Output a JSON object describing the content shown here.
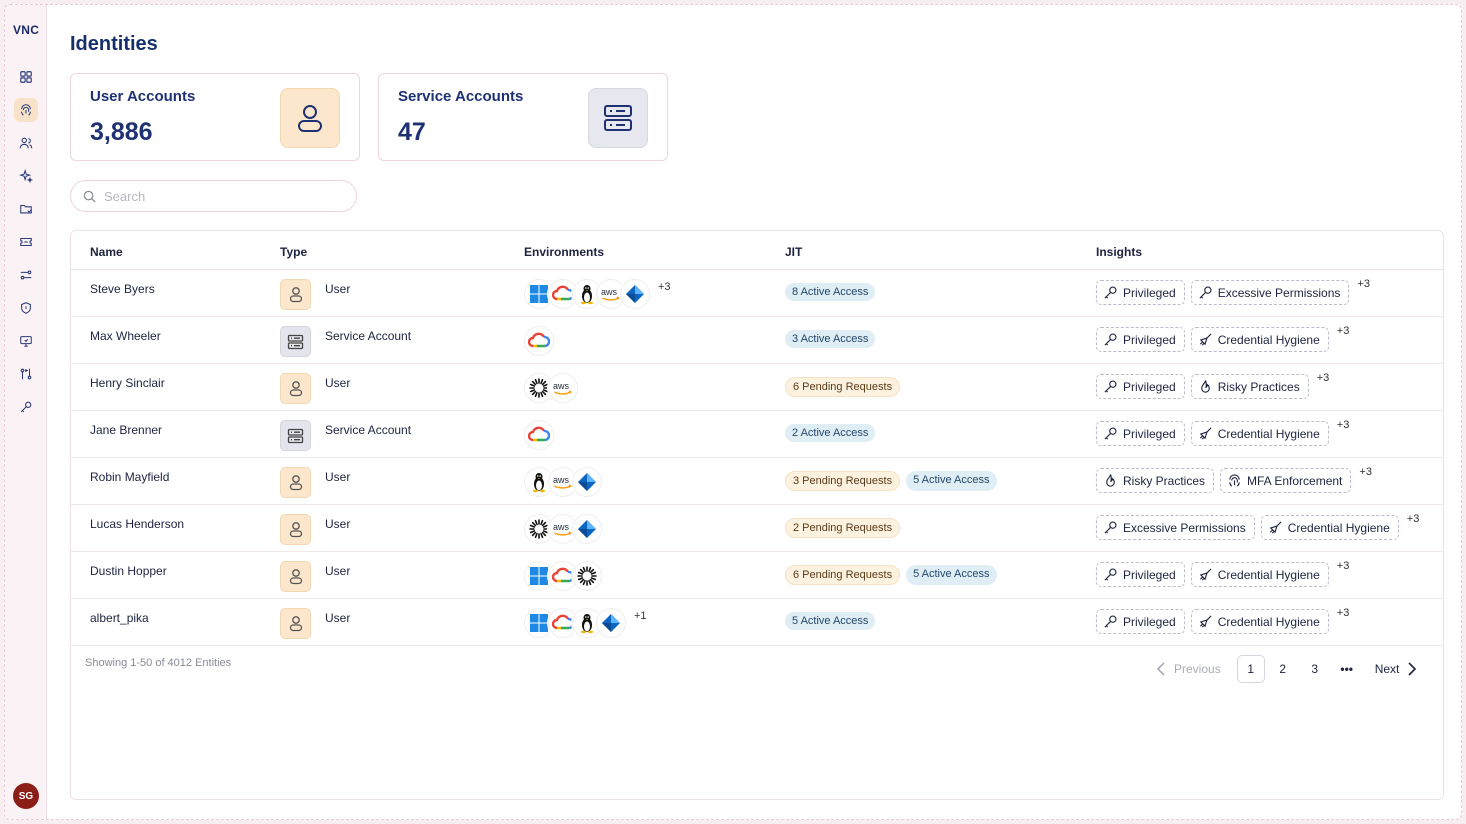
{
  "brand": "VNC",
  "user_initials": "SG",
  "page_title": "Identities",
  "cards": {
    "user_accounts": {
      "label": "User Accounts",
      "value": "3,886"
    },
    "service_accounts": {
      "label": "Service Accounts",
      "value": "47"
    }
  },
  "search": {
    "placeholder": "Search",
    "value": ""
  },
  "table": {
    "headers": {
      "name": "Name",
      "type": "Type",
      "environments": "Environments",
      "jit": "JIT",
      "insights": "Insights"
    },
    "rows": [
      {
        "name": "Steve Byers",
        "type": "User",
        "type_icon": "user-icon",
        "envs": [
          "windows",
          "gcp",
          "linux",
          "aws",
          "azure"
        ],
        "env_more": "+3",
        "jit": [
          {
            "label": "8 Active Access",
            "kind": "active"
          }
        ],
        "insights": [
          {
            "label": "Privileged",
            "icon": "key-icon"
          },
          {
            "label": "Excessive Permissions",
            "icon": "key-icon"
          }
        ],
        "insights_more": "+3"
      },
      {
        "name": "Max Wheeler",
        "type": "Service Account",
        "type_icon": "server-icon",
        "envs": [
          "gcp"
        ],
        "env_more": "",
        "jit": [
          {
            "label": "3 Active Access",
            "kind": "active"
          }
        ],
        "insights": [
          {
            "label": "Privileged",
            "icon": "key-icon"
          },
          {
            "label": "Credential Hygiene",
            "icon": "broom-icon"
          }
        ],
        "insights_more": "+3"
      },
      {
        "name": "Henry Sinclair",
        "type": "User",
        "type_icon": "user-icon",
        "envs": [
          "openai",
          "aws"
        ],
        "env_more": "",
        "jit": [
          {
            "label": "6 Pending Requests",
            "kind": "pending"
          }
        ],
        "insights": [
          {
            "label": "Privileged",
            "icon": "key-icon"
          },
          {
            "label": "Risky Practices",
            "icon": "flame-icon"
          }
        ],
        "insights_more": "+3"
      },
      {
        "name": "Jane Brenner",
        "type": "Service Account",
        "type_icon": "server-icon",
        "envs": [
          "gcp"
        ],
        "env_more": "",
        "jit": [
          {
            "label": "2 Active Access",
            "kind": "active"
          }
        ],
        "insights": [
          {
            "label": "Privileged",
            "icon": "key-icon"
          },
          {
            "label": "Credential Hygiene",
            "icon": "broom-icon"
          }
        ],
        "insights_more": "+3"
      },
      {
        "name": "Robin Mayfield",
        "type": "User",
        "type_icon": "user-icon",
        "envs": [
          "linux",
          "aws",
          "azure"
        ],
        "env_more": "",
        "jit": [
          {
            "label": "3 Pending Requests",
            "kind": "pending"
          },
          {
            "label": "5 Active Access",
            "kind": "active"
          }
        ],
        "insights": [
          {
            "label": "Risky Practices",
            "icon": "flame-icon"
          },
          {
            "label": "MFA Enforcement",
            "icon": "fingerprint-icon"
          }
        ],
        "insights_more": "+3"
      },
      {
        "name": "Lucas Henderson",
        "type": "User",
        "type_icon": "user-icon",
        "envs": [
          "openai",
          "aws",
          "azure"
        ],
        "env_more": "",
        "jit": [
          {
            "label": "2 Pending Requests",
            "kind": "pending"
          }
        ],
        "insights": [
          {
            "label": "Excessive Permissions",
            "icon": "key-icon"
          },
          {
            "label": "Credential Hygiene",
            "icon": "broom-icon"
          }
        ],
        "insights_more": "+3"
      },
      {
        "name": "Dustin Hopper",
        "type": "User",
        "type_icon": "user-icon",
        "envs": [
          "windows",
          "gcp",
          "openai"
        ],
        "env_more": "",
        "jit": [
          {
            "label": "6 Pending Requests",
            "kind": "pending"
          },
          {
            "label": "5 Active Access",
            "kind": "active"
          }
        ],
        "insights": [
          {
            "label": "Privileged",
            "icon": "key-icon"
          },
          {
            "label": "Credential Hygiene",
            "icon": "broom-icon"
          }
        ],
        "insights_more": "+3"
      },
      {
        "name": "albert_pika",
        "type": "User",
        "type_icon": "user-icon",
        "envs": [
          "windows",
          "gcp",
          "linux",
          "azure"
        ],
        "env_more": "+1",
        "jit": [
          {
            "label": "5 Active Access",
            "kind": "active"
          }
        ],
        "insights": [
          {
            "label": "Privileged",
            "icon": "key-icon"
          },
          {
            "label": "Credential Hygiene",
            "icon": "broom-icon"
          }
        ],
        "insights_more": "+3"
      }
    ]
  },
  "footer": {
    "showing": "Showing 1-50 of 4012 Entities",
    "pagination": {
      "previous": "Previous",
      "pages": [
        "1",
        "2",
        "3"
      ],
      "current": "1",
      "ellipsis": "•••",
      "next": "Next"
    }
  },
  "colors": {
    "accent": "#1e3173",
    "user_icon_bg": "#fce7cd",
    "service_icon_bg": "#e3e4ec",
    "active_pill": "#dfeef4",
    "pending_pill": "#fdf1e0"
  }
}
